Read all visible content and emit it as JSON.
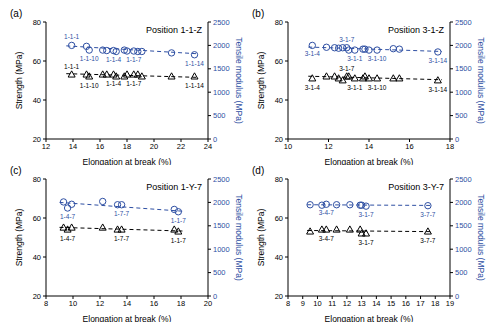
{
  "chart_data": [
    {
      "type": "scatter",
      "title": "(a)",
      "subtitle": "Position 1-1-Z",
      "x_label": "Elongation at break (%)",
      "y_label": "Strength (MPa)",
      "y2_label": "Tensile modulus (MPa)",
      "xlim": [
        12,
        24
      ],
      "xticks": [
        12,
        14,
        16,
        18,
        20,
        22,
        24
      ],
      "ylim": [
        20,
        80
      ],
      "yticks": [
        20,
        40,
        60,
        80
      ],
      "y2lim": [
        0,
        2500
      ],
      "y2ticks": [
        0,
        500,
        1000,
        1500,
        2000,
        2500
      ],
      "series": [
        {
          "type": "scatter",
          "marker": "triangle",
          "color": "#000000",
          "x": [
            13.9,
            15.0,
            15.2,
            16.2,
            16.5,
            17.0,
            17.2,
            17.8,
            18.0,
            18.5,
            18.8,
            19.1,
            21.3,
            23.0
          ],
          "values": [
            53,
            53,
            52,
            53,
            53,
            53,
            52,
            52,
            53,
            53,
            53,
            52,
            52,
            52
          ],
          "labels": [
            "1-1-1",
            null,
            "1-1-10",
            null,
            null,
            "1-1-4",
            null,
            null,
            null,
            "1-1-7",
            null,
            null,
            null,
            "1-1-14"
          ]
        },
        {
          "type": "scatter",
          "marker": "circle",
          "color": "#2e4fa3",
          "axis": "y2",
          "x": [
            13.9,
            15.0,
            15.2,
            16.2,
            16.5,
            17.0,
            17.2,
            17.8,
            18.0,
            18.5,
            18.8,
            19.1,
            21.3,
            23.0
          ],
          "values": [
            2000,
            1980,
            1900,
            1900,
            1890,
            1890,
            1870,
            1900,
            1880,
            1880,
            1870,
            1870,
            1840,
            1800
          ],
          "labels": [
            "1-1-1",
            null,
            "1-1-10",
            null,
            null,
            "1-1-4",
            null,
            null,
            null,
            "1-1-7",
            null,
            null,
            null,
            "1-1-14"
          ]
        },
        {
          "type": "line",
          "line_style": "dashed",
          "color": "#000000",
          "x": [
            13.5,
            23.3
          ],
          "values": [
            53.5,
            51.6
          ]
        },
        {
          "type": "line",
          "line_style": "dashed",
          "color": "#2e4fa3",
          "axis": "y2",
          "x": [
            13.5,
            23.3
          ],
          "values": [
            1990,
            1820
          ]
        }
      ]
    },
    {
      "type": "scatter",
      "title": "(b)",
      "subtitle": "Position 3-1-Z",
      "x_label": "Elongation at break (%)",
      "y_label": "Strength (MPa)",
      "y2_label": "Tensile modulus (MPa)",
      "xlim": [
        10,
        18
      ],
      "xticks": [
        10,
        12,
        14,
        16,
        18
      ],
      "ylim": [
        20,
        80
      ],
      "yticks": [
        20,
        40,
        60,
        80
      ],
      "y2lim": [
        0,
        2500
      ],
      "y2ticks": [
        0,
        500,
        1000,
        1500,
        2000,
        2500
      ],
      "series": [
        {
          "type": "scatter",
          "marker": "triangle",
          "color": "#000000",
          "x": [
            11.2,
            11.9,
            12.3,
            12.5,
            12.7,
            12.9,
            13.0,
            13.3,
            13.7,
            13.8,
            14.0,
            14.4,
            15.2,
            15.5,
            17.4
          ],
          "values": [
            51,
            52,
            52,
            51,
            50,
            52,
            52,
            51,
            51,
            52,
            51,
            51,
            51,
            51,
            50
          ],
          "labels": [
            "3-1-4",
            null,
            null,
            null,
            null,
            "3-1-7",
            null,
            "3-1-1",
            null,
            null,
            null,
            "3-1-10",
            null,
            null,
            "3-1-14"
          ]
        },
        {
          "type": "scatter",
          "marker": "circle",
          "color": "#2e4fa3",
          "axis": "y2",
          "x": [
            11.2,
            11.9,
            12.3,
            12.5,
            12.7,
            12.9,
            13.0,
            13.3,
            13.7,
            13.8,
            14.0,
            14.4,
            15.2,
            15.5,
            17.4
          ],
          "values": [
            2000,
            1960,
            1950,
            1940,
            1950,
            1950,
            1900,
            1900,
            1920,
            1920,
            1900,
            1900,
            1930,
            1920,
            1860
          ],
          "labels": [
            "3-1-4",
            null,
            null,
            null,
            null,
            "3-1-7",
            null,
            "3-1-1",
            null,
            null,
            null,
            "3-1-10",
            null,
            null,
            "3-1-14"
          ]
        },
        {
          "type": "line",
          "line_style": "dashed",
          "color": "#000000",
          "x": [
            11.0,
            17.6
          ],
          "values": [
            52.2,
            50.4
          ]
        },
        {
          "type": "line",
          "line_style": "dashed",
          "color": "#2e4fa3",
          "axis": "y2",
          "x": [
            11.0,
            17.6
          ],
          "values": [
            1965,
            1870
          ]
        }
      ]
    },
    {
      "type": "scatter",
      "title": "(c)",
      "subtitle": "Position 1-Y-7",
      "x_label": "Elongation at break (%)",
      "y_label": "Strength (MPa)",
      "y2_label": "Tensile modulus (MPa)",
      "xlim": [
        8,
        20
      ],
      "xticks": [
        8,
        10,
        12,
        14,
        16,
        18,
        20
      ],
      "ylim": [
        20,
        80
      ],
      "yticks": [
        20,
        40,
        60,
        80
      ],
      "y2lim": [
        0,
        2500
      ],
      "y2ticks": [
        0,
        500,
        1000,
        1500,
        2000,
        2500
      ],
      "series": [
        {
          "type": "scatter",
          "marker": "triangle",
          "color": "#000000",
          "x": [
            9.3,
            9.6,
            9.9,
            12.2,
            13.3,
            13.6,
            17.5,
            17.8
          ],
          "values": [
            55,
            54,
            55,
            55,
            54,
            54,
            54,
            53
          ],
          "labels": [
            null,
            "1-4-7",
            null,
            null,
            null,
            "1-7-7",
            null,
            "1-1-7"
          ]
        },
        {
          "type": "scatter",
          "marker": "circle",
          "color": "#2e4fa3",
          "axis": "y2",
          "x": [
            9.3,
            9.6,
            9.9,
            12.2,
            13.3,
            13.6,
            17.5,
            17.8
          ],
          "values": [
            2010,
            1880,
            1960,
            2020,
            1950,
            1950,
            1850,
            1800
          ],
          "labels": [
            null,
            "1-4-7",
            null,
            null,
            null,
            "1-7-7",
            null,
            "1-1-7"
          ]
        },
        {
          "type": "line",
          "line_style": "dashed",
          "color": "#000000",
          "x": [
            9.0,
            18.2
          ],
          "values": [
            55.2,
            53.3
          ]
        },
        {
          "type": "line",
          "line_style": "dashed",
          "color": "#2e4fa3",
          "axis": "y2",
          "x": [
            9.0,
            18.2
          ],
          "values": [
            2000,
            1810
          ]
        }
      ]
    },
    {
      "type": "scatter",
      "title": "(d)",
      "subtitle": "Position 3-Y-7",
      "x_label": "Elongation at break (%)",
      "y_label": "Strength (MPa)",
      "y2_label": "Tensile modulus (MPa)",
      "xlim": [
        8,
        19
      ],
      "xticks": [
        8,
        9,
        10,
        11,
        12,
        13,
        14,
        15,
        16,
        17,
        18,
        19
      ],
      "ylim": [
        20,
        80
      ],
      "yticks": [
        20,
        40,
        60,
        80
      ],
      "y2lim": [
        0,
        2500
      ],
      "y2ticks": [
        0,
        500,
        1000,
        1500,
        2000,
        2500
      ],
      "series": [
        {
          "type": "scatter",
          "marker": "triangle",
          "color": "#000000",
          "x": [
            9.5,
            10.3,
            10.6,
            11.3,
            12.2,
            12.9,
            13.0,
            13.3,
            17.5
          ],
          "values": [
            53,
            54,
            54,
            54,
            54,
            54,
            52,
            52,
            53
          ],
          "labels": [
            null,
            null,
            "3-4-7",
            null,
            null,
            null,
            null,
            "3-1-7",
            "3-7-7"
          ]
        },
        {
          "type": "scatter",
          "marker": "circle",
          "color": "#2e4fa3",
          "axis": "y2",
          "x": [
            9.5,
            10.3,
            10.6,
            11.3,
            12.2,
            12.9,
            13.0,
            13.3,
            17.5
          ],
          "values": [
            1950,
            1940,
            1960,
            1950,
            1950,
            1940,
            1940,
            1920,
            1930
          ],
          "labels": [
            null,
            null,
            "3-4-7",
            null,
            null,
            null,
            null,
            "3-1-7",
            "3-7-7"
          ]
        },
        {
          "type": "line",
          "line_style": "dashed",
          "color": "#000000",
          "x": [
            9.3,
            17.8
          ],
          "values": [
            53.6,
            53.0
          ]
        },
        {
          "type": "line",
          "line_style": "dashed",
          "color": "#2e4fa3",
          "axis": "y2",
          "x": [
            9.3,
            17.8
          ],
          "values": [
            1950,
            1935
          ]
        }
      ]
    }
  ]
}
